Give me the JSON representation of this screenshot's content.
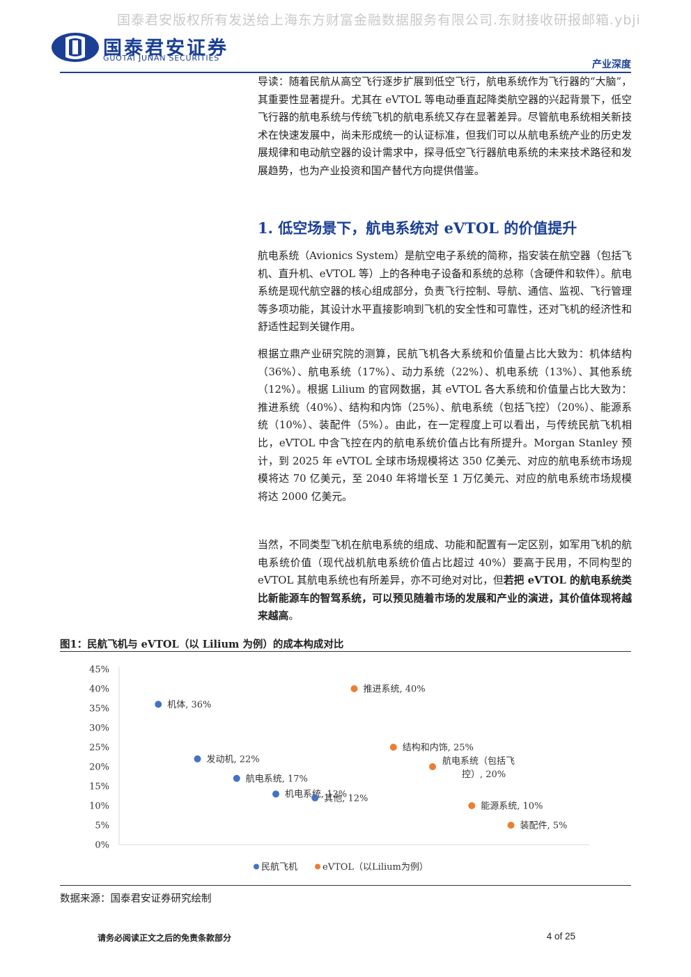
{
  "watermark": "国泰君安版权所有发送给上海东方财富金融数据服务有限公司.东财接收研报邮箱.ybji",
  "logo": {
    "name_cn": "国泰君安证券",
    "name_en": "GUOTAI JUNAN SECURITIES",
    "brand_color": "#1a3f95"
  },
  "header": {
    "doc_type": "产业深度"
  },
  "intro": "导读：随着民航从高空飞行逐步扩展到低空飞行，航电系统作为飞行器的“大脑”，其重要性显著提升。尤其在 eVTOL 等电动垂直起降类航空器的兴起背景下，低空飞行器的航电系统与传统飞机的航电系统又存在显著差异。尽管航电系统相关新技术在快速发展中，尚未形成统一的认证标准，但我们可以从航电系统产业的历史发展规律和电动航空器的设计需求中，探寻低空飞行器航电系统的未来技术路径和发展趋势，也为产业投资和国产替代方向提供借鉴。",
  "section": {
    "title": "1. 低空场景下，航电系统对 eVTOL 的价值提升"
  },
  "paragraphs": {
    "p1": "航电系统（Avionics System）是航空电子系统的简称，指安装在航空器（包括飞机、直升机、eVTOL 等）上的各种电子设备和系统的总称（含硬件和软件）。航电系统是现代航空器的核心组成部分，负责飞行控制、导航、通信、监视、飞行管理等多项功能，其设计水平直接影响到飞机的安全性和可靠性，还对飞机的经济性和舒适性起到关键作用。",
    "p2": "根据立鼎产业研究院的测算，民航飞机各大系统和价值量占比大致为：机体结构（36%）、航电系统（17%）、动力系统（22%）、机电系统（13%）、其他系统（12%）。根据 Lilium 的官网数据，其 eVTOL 各大系统和价值量占比大致为：推进系统（40%）、结构和内饰（25%）、航电系统（包括飞控）（20%）、能源系统（10%）、装配件（5%）。由此，在一定程度上可以看出，与传统民航飞机相比，eVTOL 中含飞控在内的航电系统价值占比有所提升。Morgan Stanley 预计，到 2025 年 eVTOL 全球市场规模将达 350 亿美元、对应的航电系统市场规模将达 70 亿美元，至 2040 年将增长至 1 万亿美元、对应的航电系统市场规模将达 2000 亿美元。",
    "p3_normal": "当然，不同类型飞机在航电系统的组成、功能和配置有一定区别，如军用飞机的航电系统价值（现代战机航电系统价值占比超过 40%）要高于民用，不同构型的 eVTOL 其航电系统也有所差异，亦不可绝对对比，但",
    "p3_bold": "若把 eVTOL 的航电系统类比新能源车的智驾系统，可以预见随着市场的发展和产业的演进，其价值体现将越来越高",
    "p3_end": "。"
  },
  "figure": {
    "title": "图1：民航飞机与 eVTOL（以 Lilium 为例）的成本构成对比",
    "source": "数据来源：国泰君安证券研究绘制"
  },
  "chart_data": {
    "type": "scatter",
    "ylim": [
      0,
      0.45
    ],
    "yticks": [
      "0%",
      "5%",
      "10%",
      "15%",
      "20%",
      "25%",
      "30%",
      "35%",
      "40%",
      "45%"
    ],
    "series": [
      {
        "name": "民航飞机",
        "color": "#4472c4",
        "points": [
          {
            "x": 1,
            "y": 0.36,
            "label": [
              "机体, 36%"
            ]
          },
          {
            "x": 2,
            "y": 0.22,
            "label": [
              "发动机, 22%"
            ]
          },
          {
            "x": 3,
            "y": 0.17,
            "label": [
              "航电系统, 17%"
            ]
          },
          {
            "x": 4,
            "y": 0.13,
            "label": [
              "机电系统, 13%"
            ]
          },
          {
            "x": 5,
            "y": 0.12,
            "label": [
              "其他, 12%"
            ]
          }
        ]
      },
      {
        "name": "eVTOL（以Lilium为例）",
        "color": "#ed7d31",
        "points": [
          {
            "x": 6,
            "y": 0.4,
            "label": [
              "推进系统, 40%"
            ]
          },
          {
            "x": 7,
            "y": 0.25,
            "label": [
              "结构和内饰, 25%"
            ]
          },
          {
            "x": 8,
            "y": 0.2,
            "label": [
              "航电系统（包括飞",
              "控）, 20%"
            ]
          },
          {
            "x": 9,
            "y": 0.1,
            "label": [
              "能源系统, 10%"
            ]
          },
          {
            "x": 10,
            "y": 0.05,
            "label": [
              "装配件, 5%"
            ]
          }
        ]
      }
    ],
    "grid": false,
    "legend": "bottom"
  },
  "footer": {
    "disclaimer": "请务必阅读正文之后的免责条款部分",
    "page": "4 of 25"
  }
}
